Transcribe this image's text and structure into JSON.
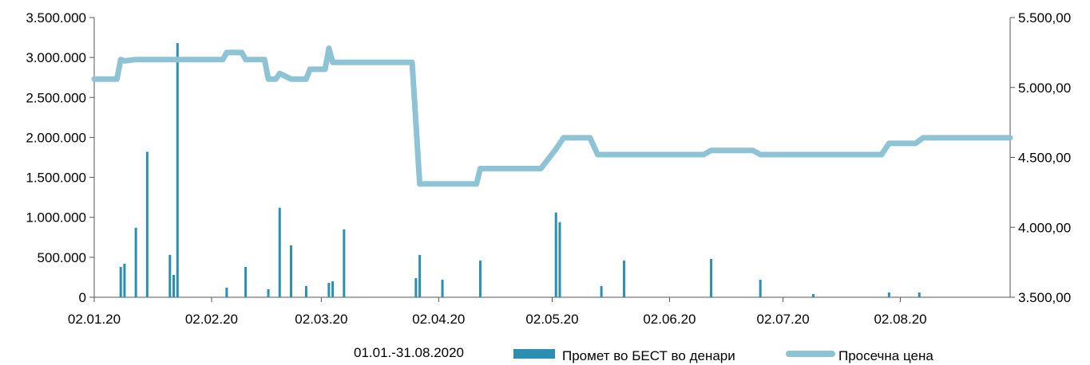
{
  "chart_data": {
    "type": "bar+line",
    "period_label": "01.01.-31.08.2020",
    "x_tick_labels": [
      "02.01.20",
      "02.02.20",
      "02.03.20",
      "02.04.20",
      "02.05.20",
      "02.06.20",
      "02.07.20",
      "02.08.20"
    ],
    "x_tick_dates": [
      "2020-01-02",
      "2020-02-02",
      "2020-03-02",
      "2020-04-02",
      "2020-05-02",
      "2020-06-02",
      "2020-07-02",
      "2020-08-02"
    ],
    "x_range": [
      "2020-01-02",
      "2020-08-31"
    ],
    "left_axis": {
      "ylim": [
        0,
        3500000
      ],
      "ticks": [
        0,
        500000,
        1000000,
        1500000,
        2000000,
        2500000,
        3000000,
        3500000
      ],
      "tick_labels": [
        "0",
        "500.000",
        "1.000.000",
        "1.500.000",
        "2.000.000",
        "2.500.000",
        "3.000.000",
        "3.500.000"
      ]
    },
    "right_axis": {
      "ylim": [
        3500,
        5500
      ],
      "ticks": [
        3500,
        4000,
        4500,
        5000,
        5500
      ],
      "tick_labels": [
        "3.500,00",
        "4.000,00",
        "4.500,00",
        "5.000,00",
        "5.500,00"
      ]
    },
    "grid": false,
    "legend_placement": "bottom",
    "series": [
      {
        "name": "Промет во БЕСТ во денари",
        "type": "bar",
        "axis": "left",
        "color": "#2a8fb0",
        "points": [
          [
            "2020-01-09",
            380000
          ],
          [
            "2020-01-10",
            420000
          ],
          [
            "2020-01-13",
            870000
          ],
          [
            "2020-01-16",
            1820000
          ],
          [
            "2020-01-22",
            530000
          ],
          [
            "2020-01-23",
            280000
          ],
          [
            "2020-01-24",
            3180000
          ],
          [
            "2020-02-06",
            120000
          ],
          [
            "2020-02-11",
            380000
          ],
          [
            "2020-02-17",
            100000
          ],
          [
            "2020-02-20",
            1120000
          ],
          [
            "2020-02-23",
            650000
          ],
          [
            "2020-02-27",
            140000
          ],
          [
            "2020-03-04",
            180000
          ],
          [
            "2020-03-05",
            200000
          ],
          [
            "2020-03-08",
            850000
          ],
          [
            "2020-03-27",
            240000
          ],
          [
            "2020-03-28",
            530000
          ],
          [
            "2020-04-03",
            220000
          ],
          [
            "2020-04-13",
            460000
          ],
          [
            "2020-05-03",
            1060000
          ],
          [
            "2020-05-04",
            940000
          ],
          [
            "2020-05-15",
            140000
          ],
          [
            "2020-05-21",
            460000
          ],
          [
            "2020-06-13",
            480000
          ],
          [
            "2020-06-26",
            220000
          ],
          [
            "2020-07-10",
            40000
          ],
          [
            "2020-07-30",
            60000
          ],
          [
            "2020-08-07",
            60000
          ]
        ]
      },
      {
        "name": "Просечна цена",
        "type": "line",
        "axis": "right",
        "color": "#8ec3d6",
        "points": [
          [
            "2020-01-02",
            5060
          ],
          [
            "2020-01-08",
            5060
          ],
          [
            "2020-01-09",
            5200
          ],
          [
            "2020-01-10",
            5190
          ],
          [
            "2020-01-13",
            5200
          ],
          [
            "2020-02-05",
            5200
          ],
          [
            "2020-02-06",
            5250
          ],
          [
            "2020-02-10",
            5250
          ],
          [
            "2020-02-11",
            5200
          ],
          [
            "2020-02-16",
            5200
          ],
          [
            "2020-02-17",
            5060
          ],
          [
            "2020-02-19",
            5060
          ],
          [
            "2020-02-20",
            5100
          ],
          [
            "2020-02-23",
            5060
          ],
          [
            "2020-02-27",
            5060
          ],
          [
            "2020-02-28",
            5130
          ],
          [
            "2020-03-03",
            5130
          ],
          [
            "2020-03-04",
            5280
          ],
          [
            "2020-03-05",
            5180
          ],
          [
            "2020-03-26",
            5180
          ],
          [
            "2020-03-28",
            4310
          ],
          [
            "2020-04-12",
            4310
          ],
          [
            "2020-04-13",
            4420
          ],
          [
            "2020-04-29",
            4420
          ],
          [
            "2020-05-03",
            4560
          ],
          [
            "2020-05-05",
            4640
          ],
          [
            "2020-05-12",
            4640
          ],
          [
            "2020-05-14",
            4520
          ],
          [
            "2020-06-11",
            4520
          ],
          [
            "2020-06-13",
            4550
          ],
          [
            "2020-06-24",
            4550
          ],
          [
            "2020-06-26",
            4520
          ],
          [
            "2020-07-28",
            4520
          ],
          [
            "2020-07-30",
            4600
          ],
          [
            "2020-08-06",
            4600
          ],
          [
            "2020-08-08",
            4640
          ],
          [
            "2020-08-31",
            4640
          ]
        ]
      }
    ]
  }
}
